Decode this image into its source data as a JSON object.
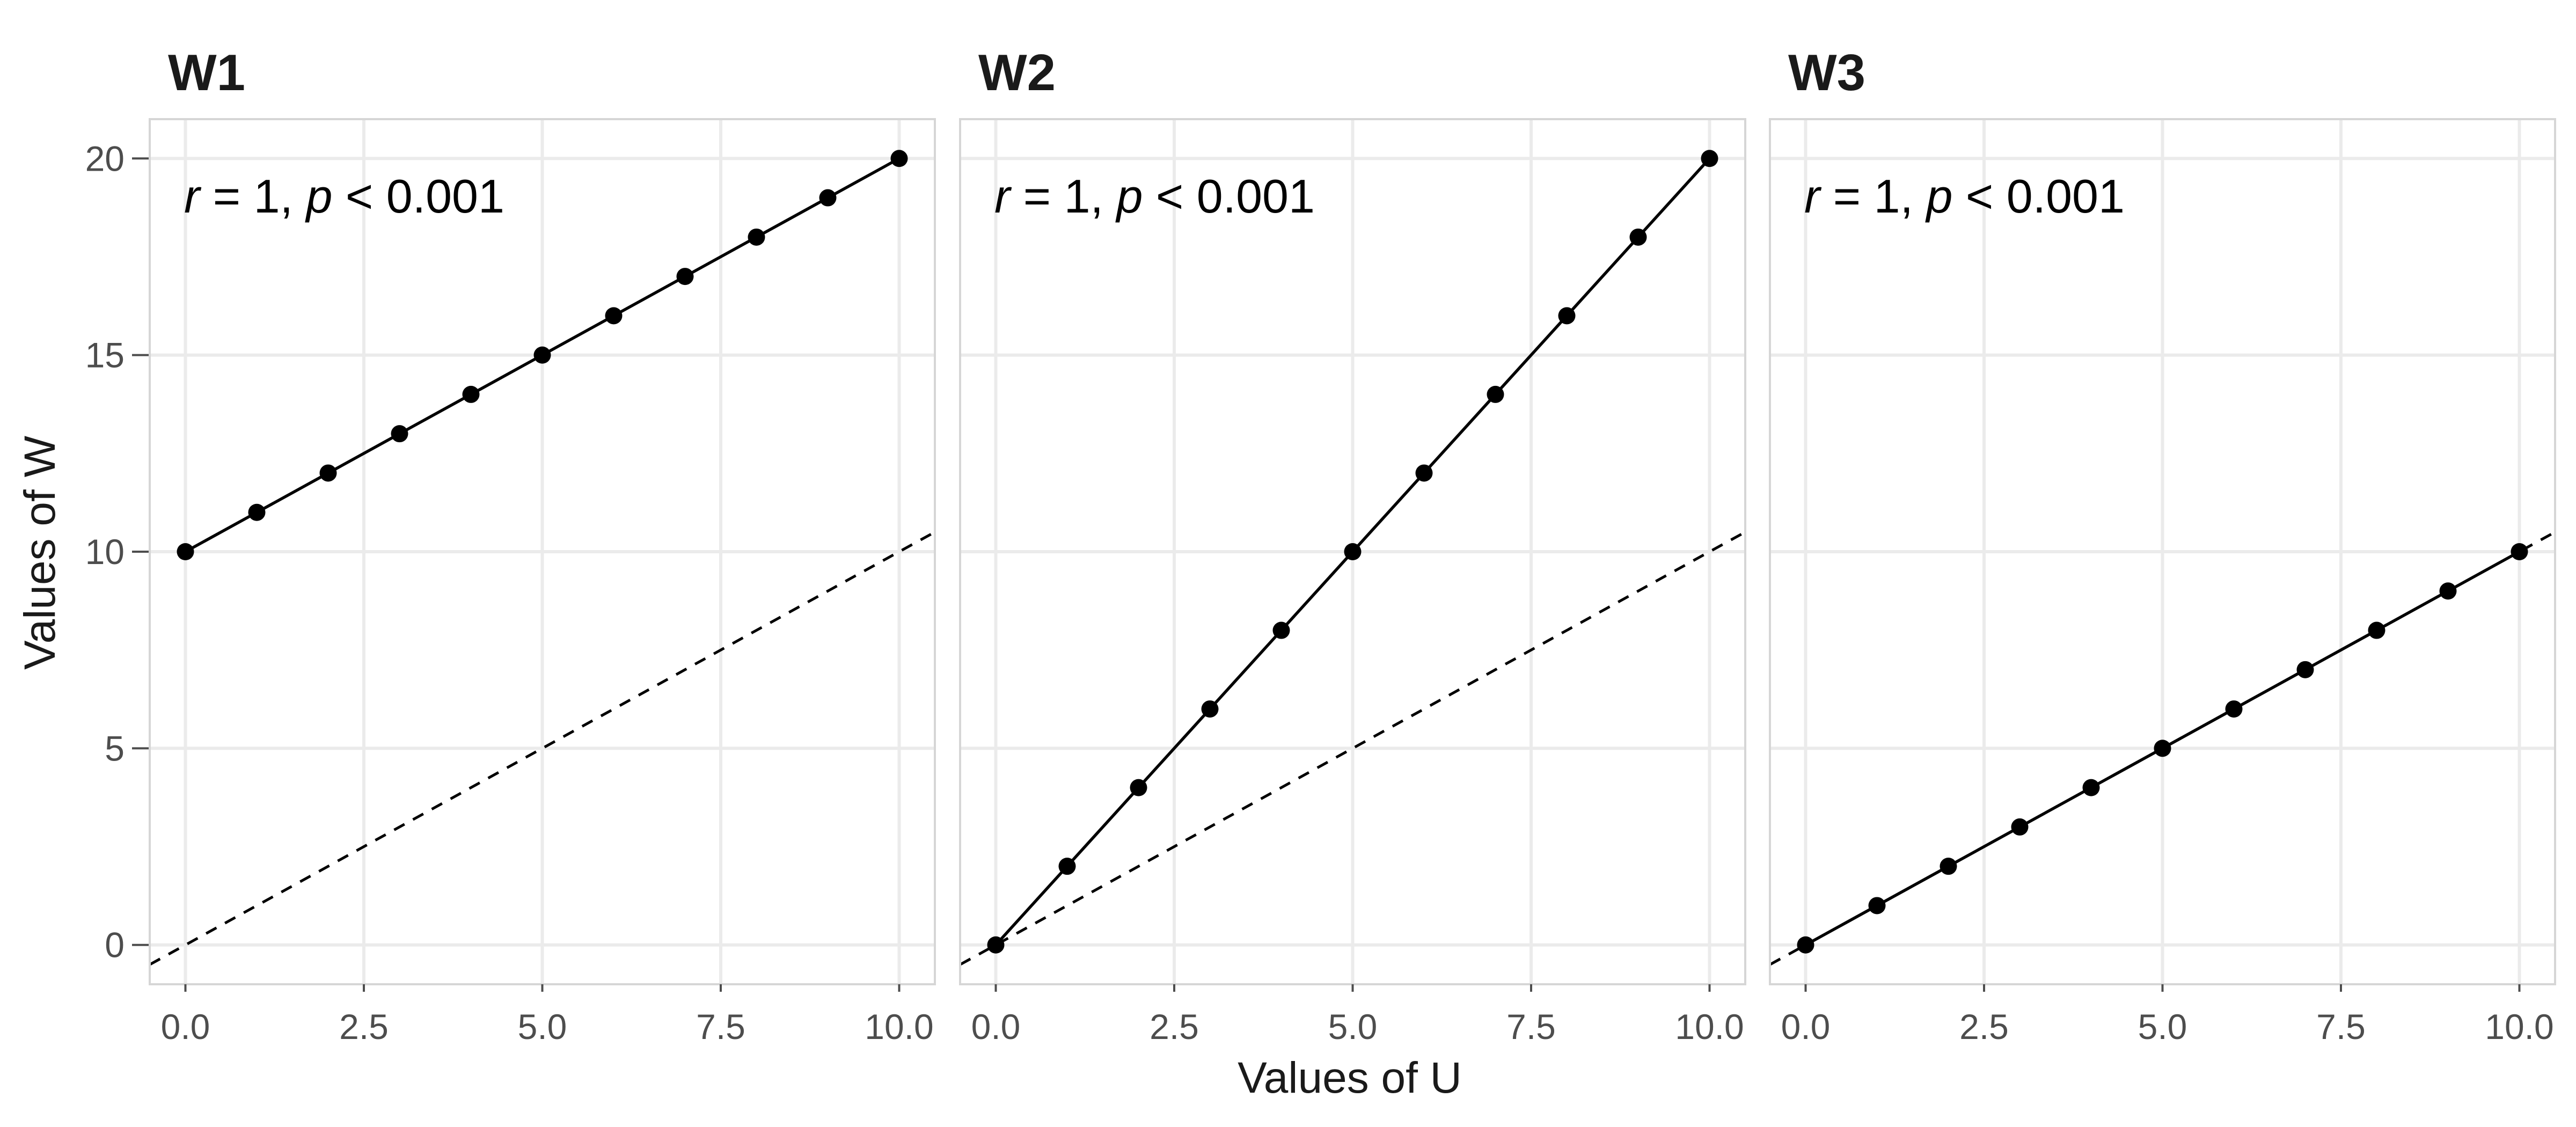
{
  "chart_data": {
    "type": "line",
    "x_label": "Values of U",
    "y_label": "Values of W",
    "xlim": [
      -0.5,
      10.5
    ],
    "ylim": [
      -1,
      21
    ],
    "x_ticks": [
      0,
      2.5,
      5,
      7.5,
      10
    ],
    "x_tick_labels": [
      "0.0",
      "2.5",
      "5.0",
      "7.5",
      "10.0"
    ],
    "y_ticks": [
      0,
      5,
      10,
      15,
      20
    ],
    "y_tick_labels": [
      "0",
      "5",
      "10",
      "15",
      "20"
    ],
    "grid": true,
    "reference_line": {
      "style": "dashed",
      "slope": 1,
      "intercept": 0
    },
    "panels": [
      {
        "title": "W1",
        "annotation": {
          "r_symbol": "r",
          "r_text": " = 1, ",
          "p_symbol": "p",
          "p_text": " < 0.001"
        },
        "x": [
          0,
          1,
          2,
          3,
          4,
          5,
          6,
          7,
          8,
          9,
          10
        ],
        "y": [
          10,
          11,
          12,
          13,
          14,
          15,
          16,
          17,
          18,
          19,
          20
        ]
      },
      {
        "title": "W2",
        "annotation": {
          "r_symbol": "r",
          "r_text": " = 1, ",
          "p_symbol": "p",
          "p_text": " < 0.001"
        },
        "x": [
          0,
          1,
          2,
          3,
          4,
          5,
          6,
          7,
          8,
          9,
          10
        ],
        "y": [
          0,
          2,
          4,
          6,
          8,
          10,
          12,
          14,
          16,
          18,
          20
        ]
      },
      {
        "title": "W3",
        "annotation": {
          "r_symbol": "r",
          "r_text": " = 1, ",
          "p_symbol": "p",
          "p_text": " < 0.001"
        },
        "x": [
          0,
          1,
          2,
          3,
          4,
          5,
          6,
          7,
          8,
          9,
          10
        ],
        "y": [
          0,
          1,
          2,
          3,
          4,
          5,
          6,
          7,
          8,
          9,
          10
        ]
      }
    ]
  }
}
